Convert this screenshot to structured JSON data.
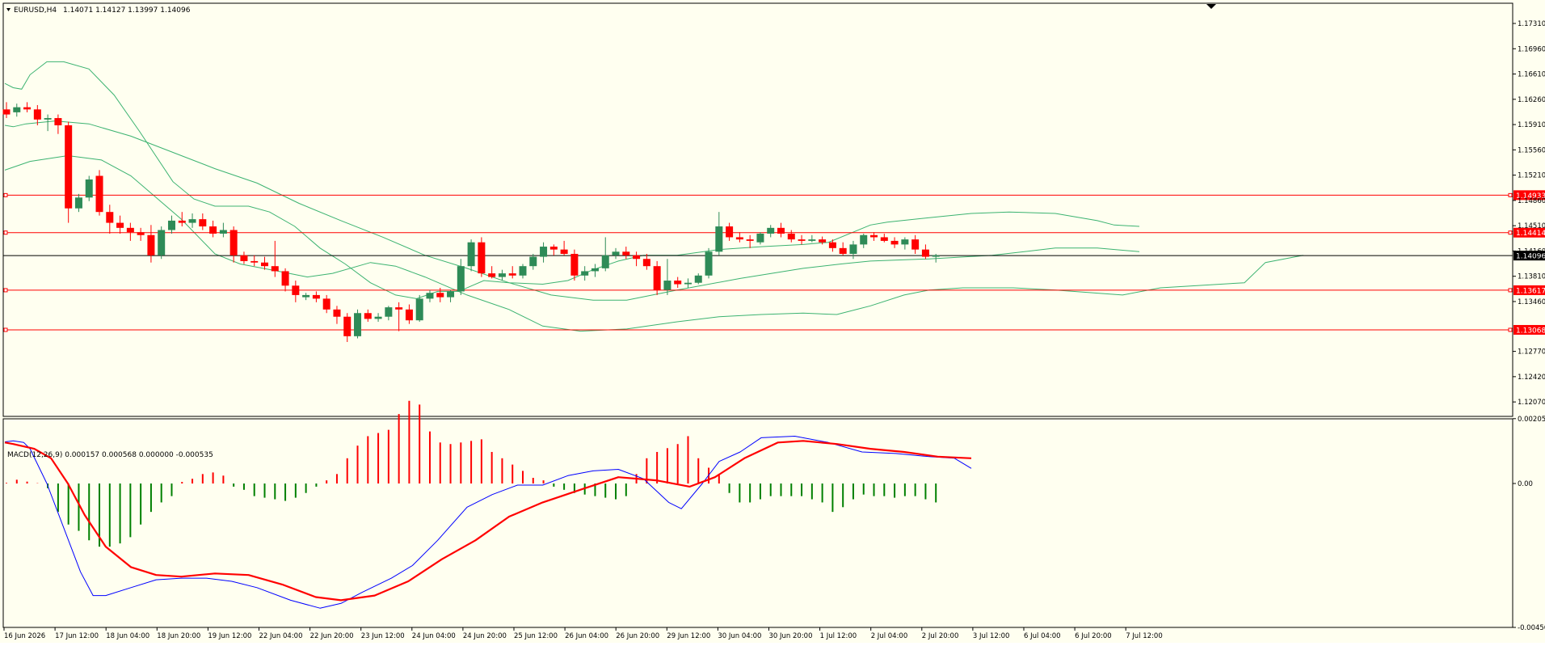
{
  "colors": {
    "background": "#fffff0",
    "frame": "#000000",
    "axis_text": "#000000",
    "bull_candle": "#2e8b57",
    "bear_candle": "#ff0000",
    "bollinger": "#3cb371",
    "hline": "#ff0000",
    "price_line": "#000000",
    "macd_main": "#0000ff",
    "macd_signal": "#ff0000",
    "hist_pos": "#ff0000",
    "hist_neg": "#008000",
    "tag_text": "#ffffff"
  },
  "header": {
    "symbol": "EURUSD,H4",
    "ohlc": "1.14071 1.14127 1.13997 1.14096"
  },
  "price_axis": {
    "min": 1.1187,
    "max": 1.1759,
    "ticks": [
      "1.17310",
      "1.16960",
      "1.16610",
      "1.16260",
      "1.15910",
      "1.15560",
      "1.15210",
      "1.14860",
      "1.14510",
      "1.14160",
      "1.13810",
      "1.13460",
      "1.12770",
      "1.12420",
      "1.12070"
    ]
  },
  "levels": [
    {
      "value": 1.14933,
      "label": "1.14933"
    },
    {
      "value": 1.14414,
      "label": "1.14414"
    },
    {
      "value": 1.13617,
      "label": "1.13617"
    },
    {
      "value": 1.13068,
      "label": "1.13068"
    }
  ],
  "current_price": {
    "value": 1.14096,
    "label": "1.14096"
  },
  "macd": {
    "label": "MACD(12,26,9) 0.000157 0.000568 0.000000 -0.000535",
    "min": -0.00456,
    "max": 0.00205,
    "ticks": [
      "0.002055",
      "0.00",
      "-0.00456"
    ],
    "zero_label": "0.00"
  },
  "time_labels": [
    "16 Jun 2026",
    "17 Jun 12:00",
    "18 Jun 04:00",
    "18 Jun 20:00",
    "19 Jun 12:00",
    "22 Jun 04:00",
    "22 Jun 20:00",
    "23 Jun 12:00",
    "24 Jun 04:00",
    "24 Jun 20:00",
    "25 Jun 12:00",
    "26 Jun 04:00",
    "26 Jun 20:00",
    "29 Jun 12:00",
    "30 Jun 04:00",
    "30 Jun 20:00",
    "1 Jul 12:00",
    "2 Jul 04:00",
    "2 Jul 20:00",
    "3 Jul 12:00",
    "6 Jul 04:00",
    "6 Jul 20:00",
    "7 Jul 12:00"
  ],
  "chart_data": {
    "type": "candlestick",
    "symbol": "EURUSD",
    "timeframe": "H4",
    "candles": [
      [
        1.1612,
        1.1622,
        1.16,
        1.1605
      ],
      [
        1.1608,
        1.162,
        1.1602,
        1.1615
      ],
      [
        1.1615,
        1.1622,
        1.1608,
        1.1612
      ],
      [
        1.1612,
        1.1618,
        1.159,
        1.1598
      ],
      [
        1.1598,
        1.1605,
        1.1582,
        1.16
      ],
      [
        1.16,
        1.1605,
        1.1578,
        1.159
      ],
      [
        1.159,
        1.1595,
        1.1455,
        1.1475
      ],
      [
        1.1475,
        1.1495,
        1.147,
        1.149
      ],
      [
        1.149,
        1.152,
        1.1485,
        1.1515
      ],
      [
        1.152,
        1.1528,
        1.1465,
        1.147
      ],
      [
        1.147,
        1.148,
        1.144,
        1.1455
      ],
      [
        1.1455,
        1.1465,
        1.144,
        1.1448
      ],
      [
        1.1448,
        1.1455,
        1.143,
        1.1442
      ],
      [
        1.1442,
        1.1448,
        1.143,
        1.1438
      ],
      [
        1.1438,
        1.1452,
        1.14,
        1.141
      ],
      [
        1.141,
        1.145,
        1.1405,
        1.1445
      ],
      [
        1.1445,
        1.1465,
        1.144,
        1.1458
      ],
      [
        1.1458,
        1.147,
        1.145,
        1.1455
      ],
      [
        1.1455,
        1.1468,
        1.1448,
        1.146
      ],
      [
        1.146,
        1.1468,
        1.1445,
        1.145
      ],
      [
        1.145,
        1.1458,
        1.1435,
        1.144
      ],
      [
        1.144,
        1.1455,
        1.1435,
        1.1445
      ],
      [
        1.1445,
        1.145,
        1.14,
        1.141
      ],
      [
        1.141,
        1.1415,
        1.1398,
        1.1402
      ],
      [
        1.1402,
        1.141,
        1.1395,
        1.14
      ],
      [
        1.14,
        1.1408,
        1.139,
        1.1395
      ],
      [
        1.1395,
        1.143,
        1.138,
        1.1388
      ],
      [
        1.1388,
        1.1392,
        1.136,
        1.1368
      ],
      [
        1.1368,
        1.1375,
        1.1345,
        1.1355
      ],
      [
        1.1352,
        1.1358,
        1.1348,
        1.1355
      ],
      [
        1.1355,
        1.136,
        1.1345,
        1.135
      ],
      [
        1.135,
        1.1355,
        1.133,
        1.1335
      ],
      [
        1.1335,
        1.134,
        1.1315,
        1.1325
      ],
      [
        1.1325,
        1.133,
        1.129,
        1.1298
      ],
      [
        1.1298,
        1.1335,
        1.1295,
        1.133
      ],
      [
        1.133,
        1.1335,
        1.1318,
        1.1322
      ],
      [
        1.1322,
        1.133,
        1.1318,
        1.1325
      ],
      [
        1.1325,
        1.134,
        1.132,
        1.1338
      ],
      [
        1.1338,
        1.1345,
        1.1305,
        1.1335
      ],
      [
        1.1335,
        1.1342,
        1.1315,
        1.132
      ],
      [
        1.132,
        1.1355,
        1.1318,
        1.135
      ],
      [
        1.135,
        1.1362,
        1.1345,
        1.1358
      ],
      [
        1.1358,
        1.1365,
        1.1345,
        1.1352
      ],
      [
        1.1352,
        1.1362,
        1.1345,
        1.136
      ],
      [
        1.136,
        1.1405,
        1.1355,
        1.1395
      ],
      [
        1.1395,
        1.1432,
        1.1388,
        1.1428
      ],
      [
        1.1428,
        1.1435,
        1.138,
        1.1385
      ],
      [
        1.1385,
        1.1395,
        1.1378,
        1.138
      ],
      [
        1.138,
        1.139,
        1.1375,
        1.1385
      ],
      [
        1.1385,
        1.1395,
        1.1378,
        1.1382
      ],
      [
        1.1382,
        1.1398,
        1.1378,
        1.1395
      ],
      [
        1.1395,
        1.1412,
        1.139,
        1.1408
      ],
      [
        1.1408,
        1.1428,
        1.14,
        1.1422
      ],
      [
        1.1422,
        1.1425,
        1.141,
        1.1418
      ],
      [
        1.1418,
        1.143,
        1.141,
        1.1412
      ],
      [
        1.1412,
        1.1418,
        1.1375,
        1.1382
      ],
      [
        1.1382,
        1.1395,
        1.1375,
        1.1388
      ],
      [
        1.1388,
        1.1398,
        1.138,
        1.1392
      ],
      [
        1.1392,
        1.1435,
        1.1388,
        1.141
      ],
      [
        1.141,
        1.142,
        1.1405,
        1.1415
      ],
      [
        1.1415,
        1.1422,
        1.1405,
        1.141
      ],
      [
        1.141,
        1.1415,
        1.1395,
        1.1405
      ],
      [
        1.1405,
        1.1412,
        1.139,
        1.1395
      ],
      [
        1.1395,
        1.1402,
        1.1355,
        1.1362
      ],
      [
        1.1362,
        1.1405,
        1.1355,
        1.1375
      ],
      [
        1.1375,
        1.138,
        1.1365,
        1.137
      ],
      [
        1.137,
        1.1378,
        1.1365,
        1.1372
      ],
      [
        1.1372,
        1.1385,
        1.137,
        1.1382
      ],
      [
        1.1382,
        1.142,
        1.1378,
        1.1415
      ],
      [
        1.1415,
        1.147,
        1.141,
        1.145
      ],
      [
        1.145,
        1.1455,
        1.143,
        1.1435
      ],
      [
        1.1435,
        1.1442,
        1.1428,
        1.1432
      ],
      [
        1.1432,
        1.1438,
        1.142,
        1.143
      ],
      [
        1.1428,
        1.1442,
        1.1425,
        1.144
      ],
      [
        1.144,
        1.1452,
        1.1435,
        1.1448
      ],
      [
        1.1448,
        1.1455,
        1.1435,
        1.144
      ],
      [
        1.144,
        1.1445,
        1.1428,
        1.1432
      ],
      [
        1.1432,
        1.1438,
        1.1425,
        1.143
      ],
      [
        1.143,
        1.1438,
        1.1428,
        1.1432
      ],
      [
        1.1432,
        1.1436,
        1.1425,
        1.1428
      ],
      [
        1.1428,
        1.1432,
        1.1415,
        1.142
      ],
      [
        1.142,
        1.1428,
        1.141,
        1.1412
      ],
      [
        1.1412,
        1.143,
        1.1405,
        1.1425
      ],
      [
        1.1425,
        1.144,
        1.142,
        1.1438
      ],
      [
        1.1438,
        1.1442,
        1.143,
        1.1435
      ],
      [
        1.1435,
        1.144,
        1.1428,
        1.143
      ],
      [
        1.143,
        1.1435,
        1.142,
        1.1425
      ],
      [
        1.1425,
        1.1435,
        1.1418,
        1.1432
      ],
      [
        1.1432,
        1.1438,
        1.1412,
        1.1418
      ],
      [
        1.1418,
        1.1425,
        1.1405,
        1.1408
      ],
      [
        1.1408,
        1.1412,
        1.14,
        1.141
      ]
    ],
    "bb_upper": [
      [
        0,
        1.1648
      ],
      [
        4,
        1.1642
      ],
      [
        8,
        1.164
      ],
      [
        12,
        1.166
      ],
      [
        20,
        1.1678
      ],
      [
        28,
        1.1678
      ],
      [
        40,
        1.1668
      ],
      [
        52,
        1.1632
      ],
      [
        64,
        1.1582
      ],
      [
        80,
        1.1512
      ],
      [
        90,
        1.1488
      ],
      [
        100,
        1.1478
      ],
      [
        116,
        1.1478
      ],
      [
        126,
        1.147
      ],
      [
        138,
        1.145
      ],
      [
        150,
        1.142
      ],
      [
        162,
        1.1398
      ],
      [
        174,
        1.1372
      ],
      [
        186,
        1.1355
      ],
      [
        196,
        1.135
      ],
      [
        206,
        1.136
      ],
      [
        216,
        1.136
      ],
      [
        228,
        1.1375
      ],
      [
        240,
        1.1372
      ],
      [
        256,
        1.137
      ],
      [
        268,
        1.1375
      ],
      [
        280,
        1.139
      ],
      [
        292,
        1.1402
      ],
      [
        304,
        1.141
      ],
      [
        320,
        1.141
      ],
      [
        340,
        1.1418
      ],
      [
        360,
        1.1422
      ],
      [
        380,
        1.1425
      ],
      [
        392,
        1.1428
      ],
      [
        412,
        1.1452
      ],
      [
        420,
        1.1456
      ],
      [
        440,
        1.1462
      ],
      [
        460,
        1.1468
      ],
      [
        478,
        1.147
      ],
      [
        500,
        1.1468
      ],
      [
        520,
        1.1458
      ],
      [
        528,
        1.1452
      ],
      [
        540,
        1.145
      ]
    ],
    "bb_middle": [
      [
        0,
        1.159
      ],
      [
        4,
        1.1588
      ],
      [
        10,
        1.1592
      ],
      [
        24,
        1.1596
      ],
      [
        40,
        1.1592
      ],
      [
        60,
        1.1575
      ],
      [
        84,
        1.1548
      ],
      [
        100,
        1.153
      ],
      [
        120,
        1.151
      ],
      [
        140,
        1.1482
      ],
      [
        160,
        1.1458
      ],
      [
        180,
        1.1435
      ],
      [
        200,
        1.141
      ],
      [
        220,
        1.1392
      ],
      [
        240,
        1.1372
      ],
      [
        260,
        1.1355
      ],
      [
        280,
        1.1348
      ],
      [
        296,
        1.1348
      ],
      [
        320,
        1.1362
      ],
      [
        350,
        1.1378
      ],
      [
        380,
        1.1392
      ],
      [
        398,
        1.1398
      ],
      [
        412,
        1.1402
      ],
      [
        440,
        1.1405
      ],
      [
        470,
        1.141
      ],
      [
        500,
        1.142
      ],
      [
        520,
        1.142
      ],
      [
        540,
        1.1415
      ]
    ],
    "bb_lower": [
      [
        0,
        1.1528
      ],
      [
        12,
        1.154
      ],
      [
        30,
        1.1548
      ],
      [
        46,
        1.1542
      ],
      [
        60,
        1.152
      ],
      [
        84,
        1.146
      ],
      [
        100,
        1.1412
      ],
      [
        112,
        1.1398
      ],
      [
        130,
        1.1388
      ],
      [
        144,
        1.138
      ],
      [
        156,
        1.1385
      ],
      [
        174,
        1.14
      ],
      [
        186,
        1.1395
      ],
      [
        200,
        1.138
      ],
      [
        220,
        1.1355
      ],
      [
        240,
        1.1335
      ],
      [
        256,
        1.1312
      ],
      [
        274,
        1.1305
      ],
      [
        296,
        1.1308
      ],
      [
        320,
        1.1318
      ],
      [
        340,
        1.1325
      ],
      [
        360,
        1.1328
      ],
      [
        380,
        1.133
      ],
      [
        396,
        1.1328
      ],
      [
        412,
        1.134
      ],
      [
        428,
        1.1355
      ],
      [
        440,
        1.1362
      ],
      [
        456,
        1.1365
      ],
      [
        480,
        1.1365
      ],
      [
        500,
        1.1362
      ],
      [
        532,
        1.1355
      ],
      [
        550,
        1.1365
      ],
      [
        590,
        1.1372
      ],
      [
        600,
        1.14
      ],
      [
        618,
        1.141
      ]
    ],
    "macd_main": [
      [
        0,
        0.00132
      ],
      [
        4,
        0.00135
      ],
      [
        9,
        0.0013
      ],
      [
        12,
        0.0011
      ],
      [
        20,
        0.0
      ],
      [
        28,
        -0.0014
      ],
      [
        36,
        -0.0028
      ],
      [
        42,
        -0.00355
      ],
      [
        48,
        -0.00355
      ],
      [
        60,
        -0.0033
      ],
      [
        72,
        -0.00305
      ],
      [
        84,
        -0.003
      ],
      [
        96,
        -0.003
      ],
      [
        108,
        -0.0031
      ],
      [
        120,
        -0.0033
      ],
      [
        136,
        -0.0037
      ],
      [
        150,
        -0.00395
      ],
      [
        160,
        -0.0038
      ],
      [
        170,
        -0.00345
      ],
      [
        184,
        -0.003
      ],
      [
        194,
        -0.0026
      ],
      [
        206,
        -0.0018
      ],
      [
        220,
        -0.00075
      ],
      [
        232,
        -0.00035
      ],
      [
        244,
        -5e-05
      ],
      [
        256,
        -5e-05
      ],
      [
        268,
        0.00025
      ],
      [
        280,
        0.0004
      ],
      [
        292,
        0.00045
      ],
      [
        304,
        0.00015
      ],
      [
        316,
        -0.0006
      ],
      [
        322,
        -0.0008
      ],
      [
        332,
        0.0
      ],
      [
        340,
        0.0007
      ],
      [
        350,
        0.001
      ],
      [
        360,
        0.00145
      ],
      [
        376,
        0.0015
      ],
      [
        392,
        0.0013
      ],
      [
        408,
        0.001
      ],
      [
        424,
        0.00095
      ],
      [
        440,
        0.00085
      ],
      [
        452,
        0.0008
      ],
      [
        460,
        0.00048
      ]
    ],
    "macd_signal": [
      [
        0,
        0.0013
      ],
      [
        4,
        0.00125
      ],
      [
        14,
        0.0011
      ],
      [
        22,
        0.0008
      ],
      [
        30,
        0.0
      ],
      [
        38,
        -0.001
      ],
      [
        48,
        -0.002
      ],
      [
        60,
        -0.00265
      ],
      [
        72,
        -0.0029
      ],
      [
        84,
        -0.00295
      ],
      [
        100,
        -0.00285
      ],
      [
        116,
        -0.0029
      ],
      [
        132,
        -0.0032
      ],
      [
        148,
        -0.0036
      ],
      [
        160,
        -0.0037
      ],
      [
        176,
        -0.00355
      ],
      [
        192,
        -0.0031
      ],
      [
        208,
        -0.0024
      ],
      [
        224,
        -0.0018
      ],
      [
        240,
        -0.00105
      ],
      [
        256,
        -0.0006
      ],
      [
        276,
        -0.00015
      ],
      [
        292,
        0.0002
      ],
      [
        310,
        0.0001
      ],
      [
        326,
        -0.0001
      ],
      [
        338,
        0.0002
      ],
      [
        352,
        0.0008
      ],
      [
        368,
        0.0013
      ],
      [
        380,
        0.00135
      ],
      [
        396,
        0.00125
      ],
      [
        412,
        0.0011
      ],
      [
        428,
        0.001
      ],
      [
        444,
        0.00085
      ],
      [
        460,
        0.0008
      ]
    ],
    "macd_histogram": [
      2e-05,
      0.00012,
      6e-05,
      1e-05,
      -0.00015,
      -0.0009,
      -0.0013,
      -0.0015,
      -0.0018,
      -0.002,
      -0.002,
      -0.0019,
      -0.0017,
      -0.0013,
      -0.0009,
      -0.0006,
      -0.0004,
      5e-05,
      0.00015,
      0.0003,
      0.00035,
      0.00025,
      -0.0001,
      -0.0002,
      -0.0004,
      -0.00045,
      -0.0005,
      -0.00055,
      -0.00045,
      -0.0003,
      -0.0001,
      0.0001,
      0.0003,
      0.0008,
      0.0012,
      0.0015,
      0.0016,
      0.0017,
      0.0022,
      0.00262,
      0.0025,
      0.00165,
      0.0013,
      0.00125,
      0.0013,
      0.00135,
      0.0014,
      0.001,
      0.0008,
      0.0006,
      0.0004,
      0.00018,
      0.0001,
      -0.0001,
      -0.0002,
      -0.0003,
      -0.00035,
      -0.0004,
      -0.00045,
      -0.0005,
      -0.0004,
      0.0003,
      0.0008,
      0.001,
      0.00112,
      0.00125,
      0.0015,
      0.0008,
      0.0005,
      0.0003,
      -0.0003,
      -0.0006,
      -0.0006,
      -0.0005,
      -0.0004,
      -0.0004,
      -0.0004,
      -0.0004,
      -0.0005,
      -0.0006,
      -0.0009,
      -0.00075,
      -0.0005,
      -0.00035,
      -0.0004,
      -0.0004,
      -0.00045,
      -0.0004,
      -0.0004,
      -0.0005,
      -0.0006
    ]
  }
}
